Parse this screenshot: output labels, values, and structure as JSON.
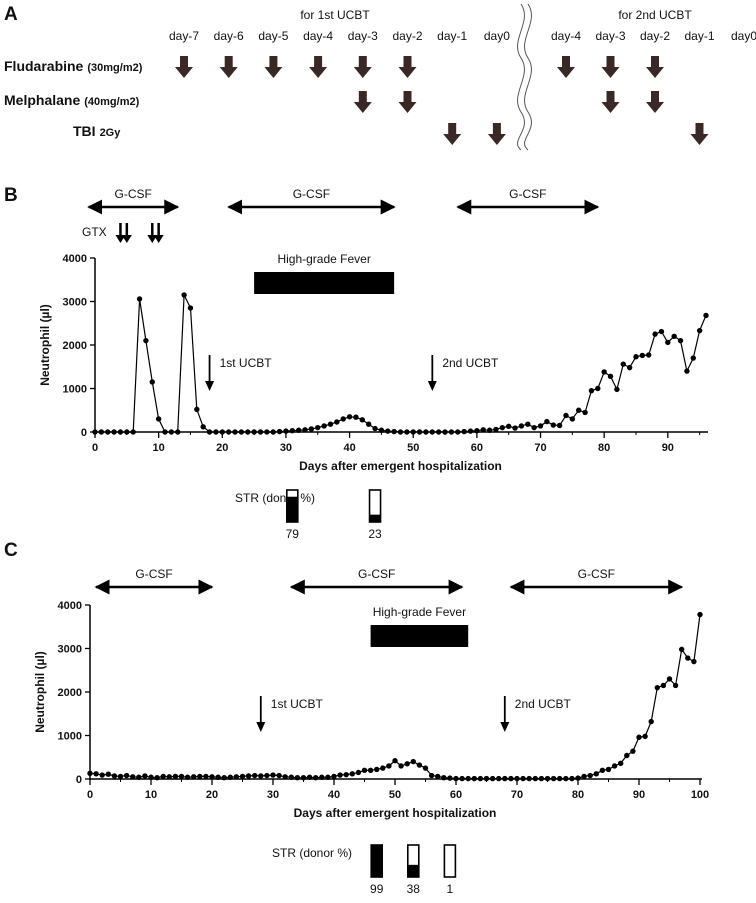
{
  "panel_a": {
    "letter": "A",
    "group1_title": "for 1st UCBT",
    "group2_title": "for 2nd UCBT",
    "days_group1": [
      "day-7",
      "day-6",
      "day-5",
      "day-4",
      "day-3",
      "day-2",
      "day-1",
      "day0"
    ],
    "days_group2": [
      "day-4",
      "day-3",
      "day-2",
      "day-1",
      "day0"
    ],
    "rows": [
      {
        "name": "Fludarabine",
        "dose": "(30mg/m2)",
        "group1": [
          "day-7",
          "day-6",
          "day-5",
          "day-4",
          "day-3",
          "day-2"
        ],
        "group2": [
          "day-4",
          "day-3",
          "day-2"
        ]
      },
      {
        "name": "Melphalane",
        "dose": "(40mg/m2)",
        "group1": [
          "day-3",
          "day-2"
        ],
        "group2": [
          "day-3",
          "day-2"
        ]
      },
      {
        "name": "TBI",
        "dose": "2Gy",
        "group1": [
          "day-1",
          "day0"
        ],
        "group2": [
          "day-1"
        ]
      }
    ],
    "arrow_color": "#3a2826"
  },
  "chart_data": [
    {
      "panel": "B",
      "type": "line",
      "title": "",
      "xlabel": "Days after emergent hospitalization",
      "ylabel": "Neutrophil (µl)",
      "xlim": [
        0,
        96
      ],
      "ylim": [
        0,
        4000
      ],
      "xticks": [
        0,
        10,
        20,
        30,
        40,
        50,
        60,
        70,
        80,
        90
      ],
      "yticks": [
        0,
        1000,
        2000,
        3000,
        4000
      ],
      "series": [
        {
          "name": "Neutrophil",
          "x": [
            0,
            1,
            2,
            3,
            4,
            5,
            6,
            7,
            8,
            9,
            10,
            11,
            12,
            13,
            14,
            15,
            16,
            17,
            18,
            19,
            20,
            21,
            22,
            23,
            24,
            25,
            26,
            27,
            28,
            29,
            30,
            31,
            32,
            33,
            34,
            35,
            36,
            37,
            38,
            39,
            40,
            41,
            42,
            43,
            44,
            45,
            46,
            47,
            48,
            49,
            50,
            51,
            52,
            53,
            54,
            55,
            56,
            57,
            58,
            59,
            60,
            61,
            62,
            63,
            64,
            65,
            66,
            67,
            68,
            69,
            70,
            71,
            72,
            73,
            74,
            75,
            76,
            77,
            78,
            79,
            80,
            81,
            82,
            83,
            84,
            85,
            86,
            87,
            88,
            89,
            90,
            91,
            92,
            93,
            94,
            95,
            96
          ],
          "y": [
            0,
            0,
            0,
            0,
            0,
            0,
            0,
            3060,
            2100,
            1150,
            300,
            0,
            0,
            0,
            3150,
            2850,
            520,
            120,
            0,
            0,
            0,
            0,
            0,
            0,
            0,
            0,
            0,
            0,
            0,
            10,
            20,
            30,
            40,
            50,
            70,
            100,
            140,
            180,
            230,
            300,
            350,
            340,
            280,
            180,
            80,
            40,
            20,
            10,
            0,
            0,
            0,
            0,
            0,
            0,
            0,
            0,
            0,
            0,
            10,
            20,
            30,
            50,
            40,
            60,
            100,
            130,
            90,
            140,
            180,
            100,
            140,
            240,
            160,
            150,
            380,
            300,
            500,
            450,
            950,
            1000,
            1380,
            1280,
            980,
            1560,
            1480,
            1730,
            1760,
            1770,
            2250,
            2310,
            2060,
            2200,
            2100,
            1400,
            1700,
            2330,
            2680
          ]
        }
      ],
      "gcsf_label": "G-CSF",
      "gcsf_ranges": [
        [
          -1,
          13
        ],
        [
          21,
          47
        ],
        [
          57,
          79
        ]
      ],
      "gtx_label": "GTX",
      "gtx_days": [
        4,
        5,
        9,
        10
      ],
      "fever_label": "High-grade Fever",
      "fever_range": [
        25,
        47
      ],
      "events": [
        {
          "label": "1st UCBT",
          "day": 18
        },
        {
          "label": "2nd UCBT",
          "day": 53
        }
      ],
      "str_label": "STR (donor %)",
      "str": [
        {
          "value": 79,
          "label": "79",
          "day": 31
        },
        {
          "value": 23,
          "label": "23",
          "day": 44
        }
      ]
    },
    {
      "panel": "C",
      "type": "line",
      "title": "",
      "xlabel": "Days after emergent hospitalization",
      "ylabel": "Neutrophil (µl)",
      "xlim": [
        0,
        100
      ],
      "ylim": [
        0,
        4000
      ],
      "xticks": [
        0,
        10,
        20,
        30,
        40,
        50,
        60,
        70,
        80,
        90,
        100
      ],
      "yticks": [
        0,
        1000,
        2000,
        3000,
        4000
      ],
      "series": [
        {
          "name": "Neutrophil",
          "x": [
            0,
            1,
            2,
            3,
            4,
            5,
            6,
            7,
            8,
            9,
            10,
            11,
            12,
            13,
            14,
            15,
            16,
            17,
            18,
            19,
            20,
            21,
            22,
            23,
            24,
            25,
            26,
            27,
            28,
            29,
            30,
            31,
            32,
            33,
            34,
            35,
            36,
            37,
            38,
            39,
            40,
            41,
            42,
            43,
            44,
            45,
            46,
            47,
            48,
            49,
            50,
            51,
            52,
            53,
            54,
            55,
            56,
            57,
            58,
            59,
            60,
            61,
            62,
            63,
            64,
            65,
            66,
            67,
            68,
            69,
            70,
            71,
            72,
            73,
            74,
            75,
            76,
            77,
            78,
            79,
            80,
            81,
            82,
            83,
            84,
            85,
            86,
            87,
            88,
            89,
            90,
            91,
            92,
            93,
            94,
            95,
            96,
            97,
            98,
            99,
            100
          ],
          "y": [
            130,
            120,
            90,
            110,
            70,
            60,
            80,
            50,
            40,
            70,
            40,
            30,
            60,
            50,
            60,
            60,
            40,
            50,
            60,
            60,
            50,
            40,
            30,
            40,
            50,
            60,
            70,
            80,
            70,
            80,
            90,
            80,
            50,
            40,
            30,
            30,
            40,
            30,
            40,
            40,
            60,
            90,
            100,
            120,
            150,
            200,
            200,
            220,
            250,
            300,
            420,
            300,
            350,
            400,
            320,
            250,
            80,
            60,
            30,
            20,
            10,
            10,
            10,
            10,
            10,
            10,
            10,
            10,
            10,
            10,
            10,
            10,
            10,
            10,
            10,
            10,
            10,
            10,
            10,
            10,
            20,
            60,
            80,
            120,
            200,
            220,
            300,
            360,
            540,
            640,
            960,
            980,
            1320,
            2100,
            2150,
            2300,
            2150,
            2980,
            2780,
            2700,
            3780
          ]
        }
      ],
      "gcsf_label": "G-CSF",
      "gcsf_ranges": [
        [
          1,
          20
        ],
        [
          33,
          61
        ],
        [
          69,
          97
        ]
      ],
      "fever_label": "High-grade Fever",
      "fever_range": [
        46,
        62
      ],
      "events": [
        {
          "label": "1st UCBT",
          "day": 28
        },
        {
          "label": "2nd UCBT",
          "day": 68
        }
      ],
      "str_label": "STR (donor %)",
      "str": [
        {
          "value": 99,
          "label": "99",
          "day": 47
        },
        {
          "value": 38,
          "label": "38",
          "day": 53
        },
        {
          "value": 1,
          "label": "1",
          "day": 59
        }
      ]
    }
  ]
}
